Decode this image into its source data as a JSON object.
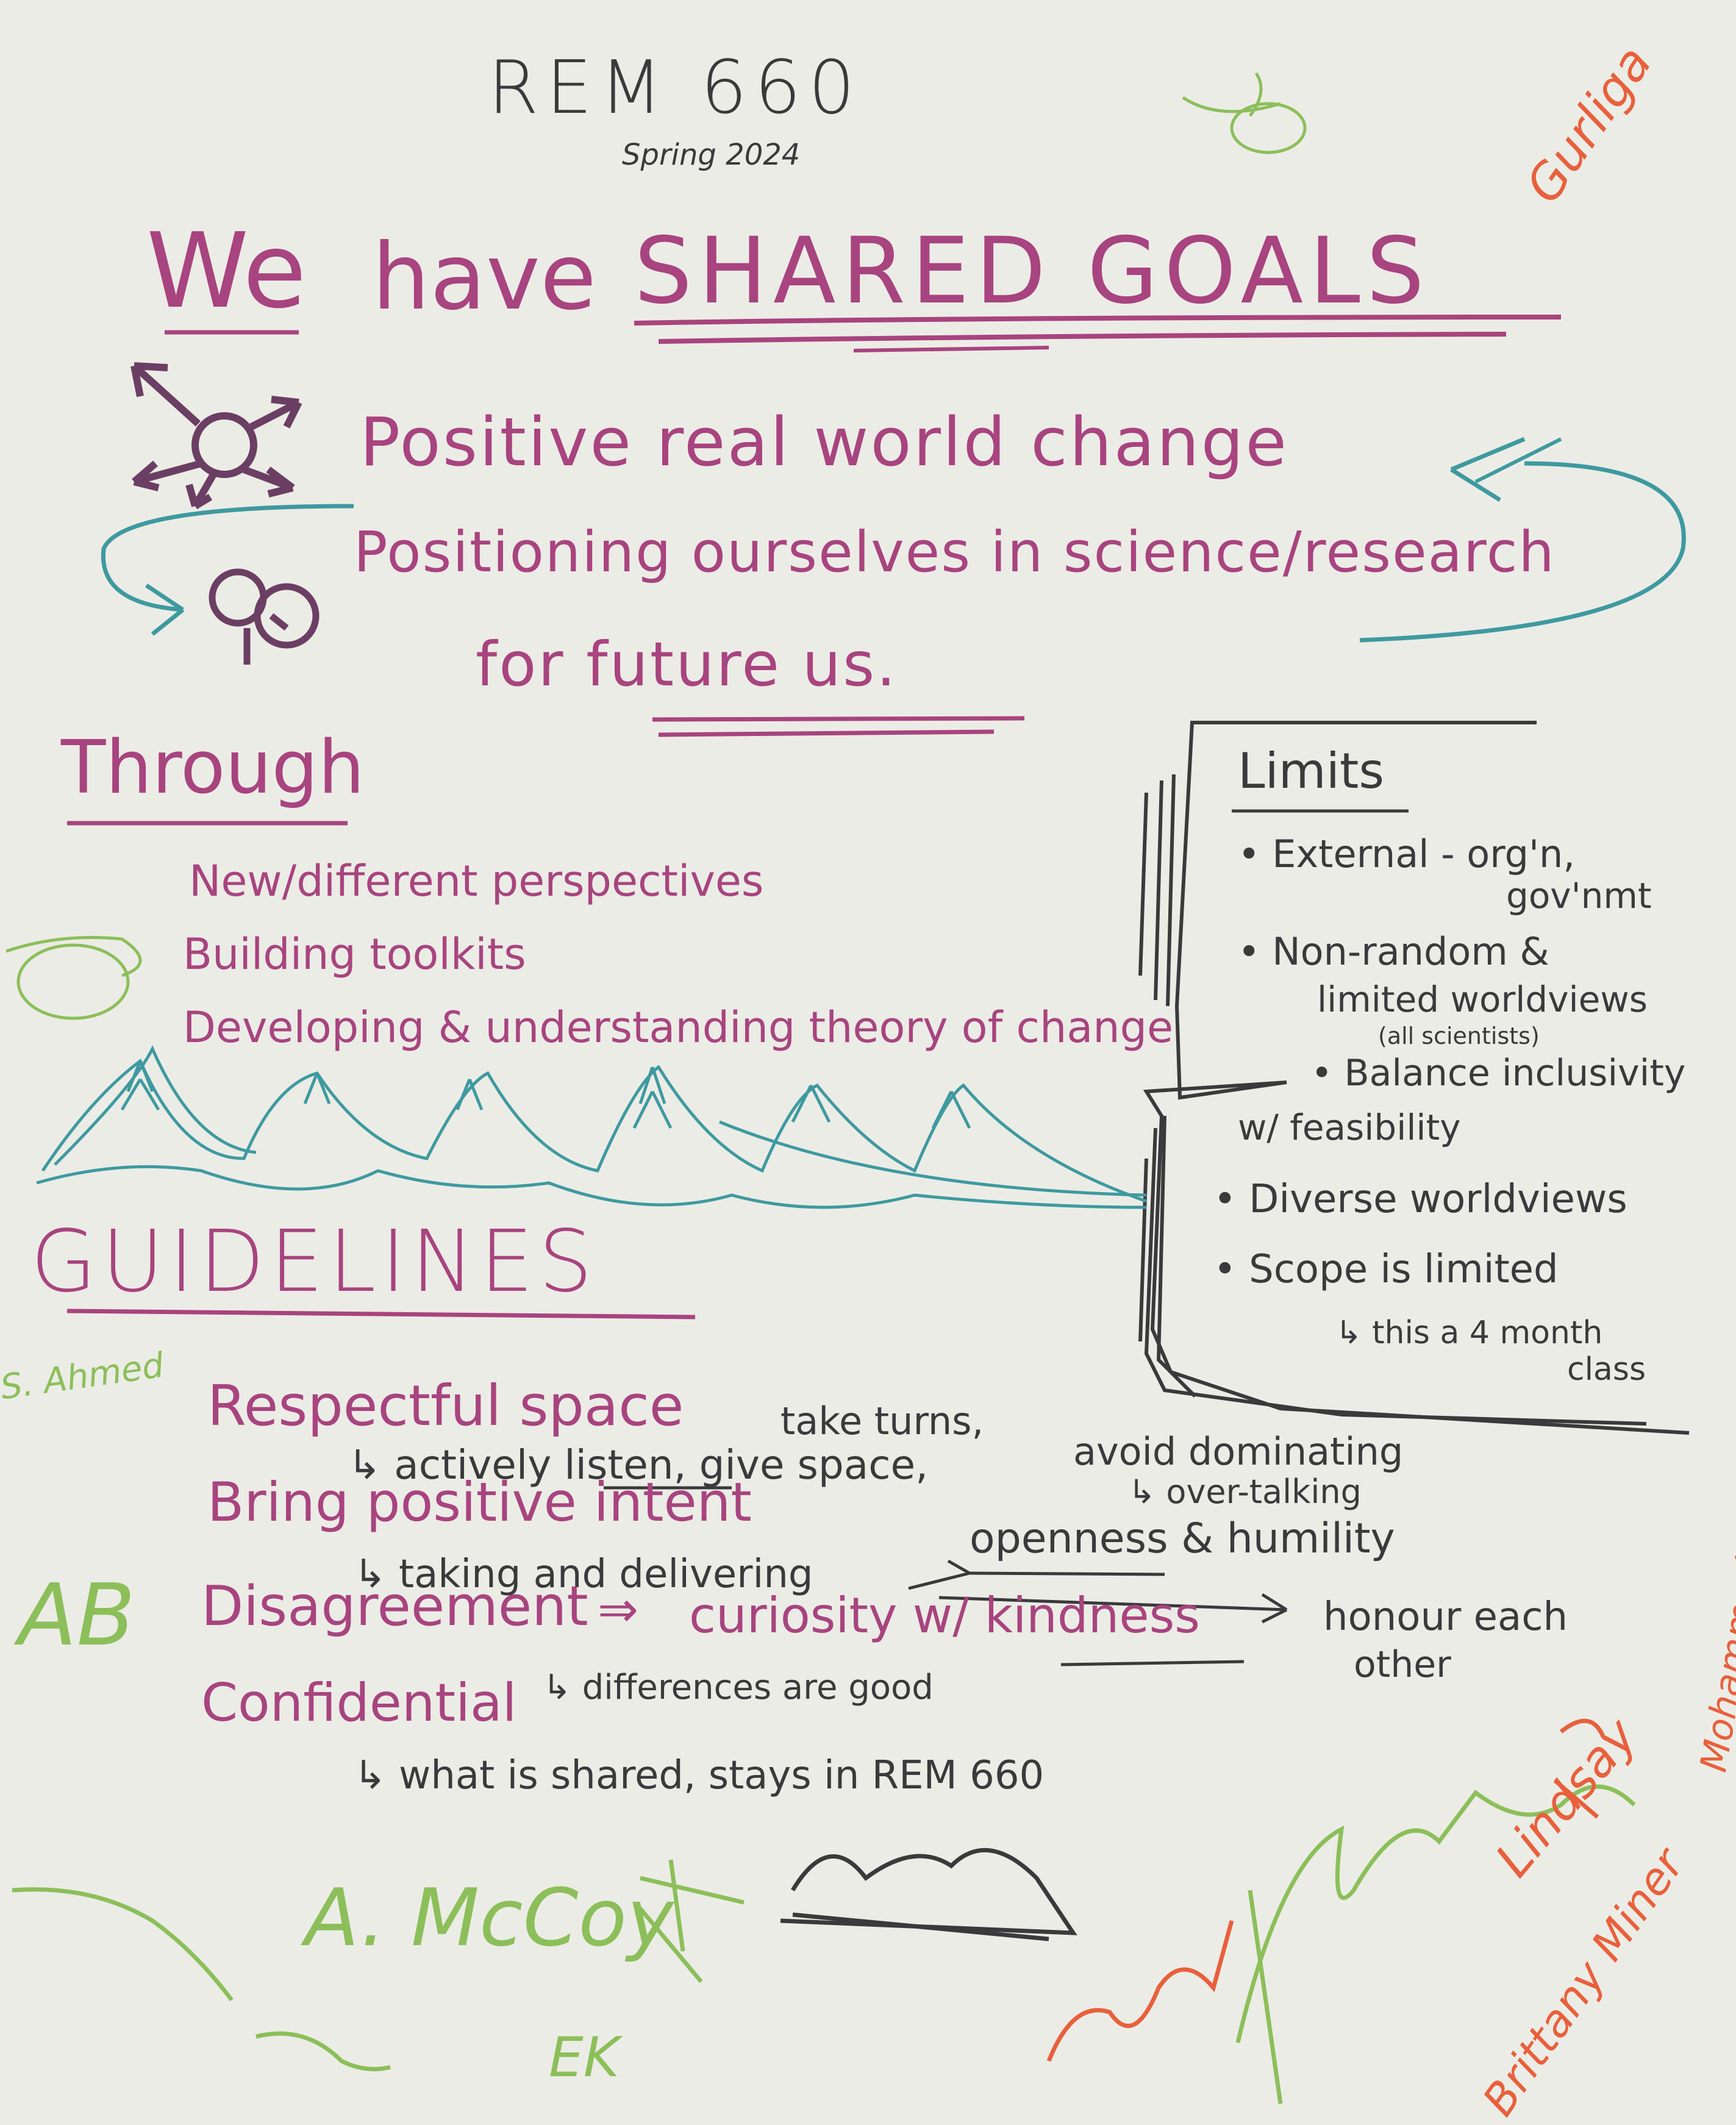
{
  "header": {
    "course": "REM 660",
    "term": "Spring 2024"
  },
  "title": {
    "we": "We",
    "have": "have",
    "shared_goals": "SHARED GOALS"
  },
  "goals": [
    "Positive real world change",
    "Positioning ourselves in science/research",
    "for future us."
  ],
  "through": {
    "heading": "Through",
    "items": [
      "New/different perspectives",
      "Building toolkits",
      "Developing & understanding theory of change"
    ]
  },
  "limits": {
    "heading": "Limits",
    "items": [
      {
        "text": "External - org'n,",
        "sub": "gov'nmt"
      },
      {
        "text": "Non-random &",
        "sub": "limited worldviews",
        "note": "(all scientists)"
      },
      {
        "text": "Balance inclusivity",
        "sub": "w/ feasibility"
      },
      {
        "text": "Diverse worldviews"
      },
      {
        "text": "Scope is limited",
        "sub": "this a 4 month",
        "sub2": "class"
      }
    ]
  },
  "guidelines": {
    "heading": "GUIDELINES",
    "items": [
      {
        "title": "Respectful space",
        "detail": "actively listen, give space,",
        "side1": "take turns,",
        "side2": "avoid dominating",
        "side3": "over-talking"
      },
      {
        "title": "Bring positive intent",
        "detail": "taking and delivering",
        "side1": "openness & humility"
      },
      {
        "title": "Disagreement",
        "arrow": "⇒",
        "detail_main": "curiosity w/ kindness",
        "detail": "differences are good",
        "side1": "honour each",
        "side2": "other"
      },
      {
        "title": "Confidential",
        "detail": "what is shared, stays in REM 660"
      }
    ]
  },
  "signatures": {
    "s_ahmed": "S. Ahmed",
    "ab": "AB",
    "a_mccoy": "A. McCoy",
    "ek": "EK",
    "lindsay": "Lindsay",
    "brittany": "Brittany Miner",
    "mohammed": "Mohammed Javed",
    "top_right": "Gurliga"
  },
  "colors": {
    "paper": "#ecece6",
    "purple_marker": "#a8447f",
    "teal_marker": "#3e9aa0",
    "black_marker": "#3a3a3c",
    "green_marker": "#8cbf5a",
    "orange_marker": "#e8603c"
  }
}
